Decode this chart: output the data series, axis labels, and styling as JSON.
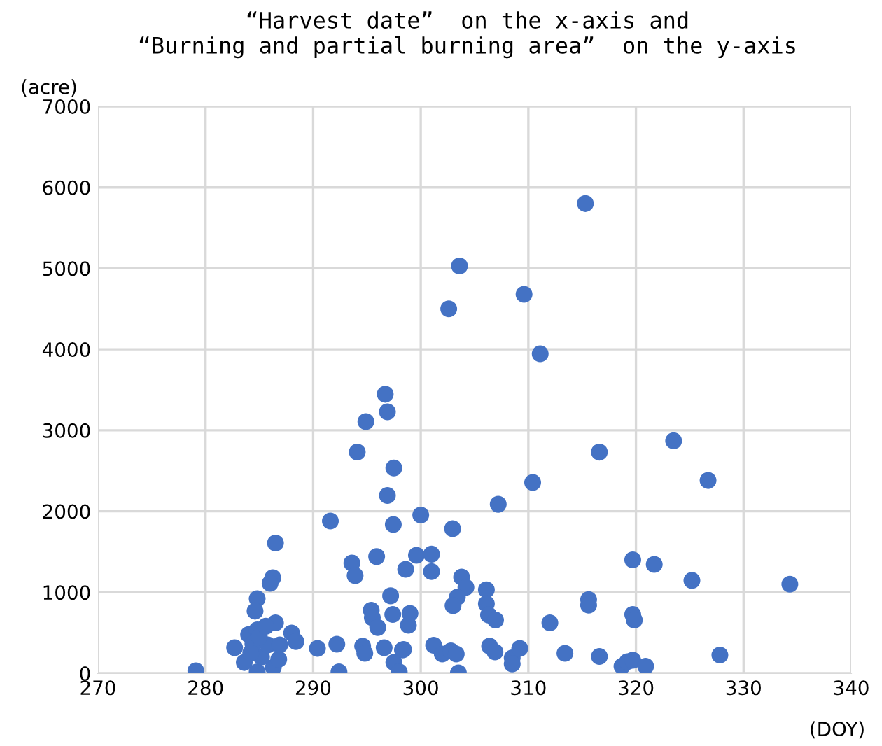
{
  "chart_data": {
    "type": "scatter",
    "title": "“Harvest date”  on the x-axis and\n“Burning and partial burning area”  on the y-axis",
    "xlabel": "(DOY)",
    "ylabel": "(acre)",
    "series": [
      {
        "color": "#4472c4",
        "x": [
          279.1,
          286.5,
          286.25,
          286.0,
          284.8,
          284.6,
          286.5,
          288.0,
          288.4,
          282.7,
          284.0,
          284.8,
          283.6,
          284.8,
          286.3,
          286.8,
          284.4,
          290.4,
          292.2,
          292.4,
          291.6,
          293.6,
          293.9,
          294.1,
          295.9,
          294.6,
          294.8,
          295.4,
          295.5,
          296.0,
          297.2,
          297.4,
          296.6,
          297.5,
          298.0,
          298.3,
          296.9,
          297.45,
          297.5,
          296.9,
          296.7,
          294.9,
          298.6,
          299.6,
          301.0,
          301.0,
          300.0,
          299.0,
          298.85,
          301.2,
          285.2,
          285.8,
          285.0,
          284.2,
          285.6,
          286.9,
          315.3,
          303.6,
          309.6,
          302.6,
          311.1,
          316.6,
          323.5,
          326.7,
          310.4,
          307.2,
          302.96,
          319.7,
          321.7,
          325.2,
          334.3,
          303.8,
          304.2,
          306.1,
          303.4,
          303.0,
          306.1,
          306.3,
          306.95,
          315.6,
          315.6,
          319.7,
          319.85,
          312.0,
          298.4,
          302.0,
          302.8,
          303.3,
          303.5,
          306.4,
          306.9,
          308.5,
          308.5,
          309.2,
          313.4,
          316.6,
          318.7,
          319.2,
          319.7,
          320.9,
          327.8
        ],
        "values": [
          30,
          1607,
          1180,
          1111,
          921,
          766,
          622,
          496,
          392,
          316,
          478,
          536,
          133,
          17,
          74,
          173,
          363,
          306,
          358,
          17,
          1879,
          1360,
          1205,
          2731,
          1440,
          334,
          247,
          778,
          686,
          565,
          956,
          726,
          316,
          133,
          17,
          288,
          2195,
          1837,
          2535,
          3227,
          3445,
          3106,
          1284,
          1457,
          1470,
          1256,
          1953,
          738,
          593,
          346,
          200,
          350,
          450,
          250,
          580,
          350,
          5800,
          5030,
          4680,
          4500,
          3945,
          2730,
          2870,
          2380,
          2355,
          2086,
          1785,
          1400,
          1343,
          1146,
          1100,
          1187,
          1060,
          1031,
          940,
          835,
          858,
          720,
          657,
          910,
          840,
          726,
          657,
          622,
          294,
          237,
          276,
          237,
          5,
          334,
          264,
          190,
          115,
          306,
          247,
          207,
          86,
          143,
          161,
          86,
          225
        ]
      }
    ],
    "marker": "circle",
    "grid": true,
    "xlim": [
      270,
      340
    ],
    "xticks": [
      270,
      280,
      290,
      300,
      310,
      320,
      330,
      340
    ],
    "ylim": [
      0,
      7000
    ],
    "yticks": [
      0,
      1000,
      2000,
      3000,
      4000,
      5000,
      6000,
      7000
    ]
  }
}
